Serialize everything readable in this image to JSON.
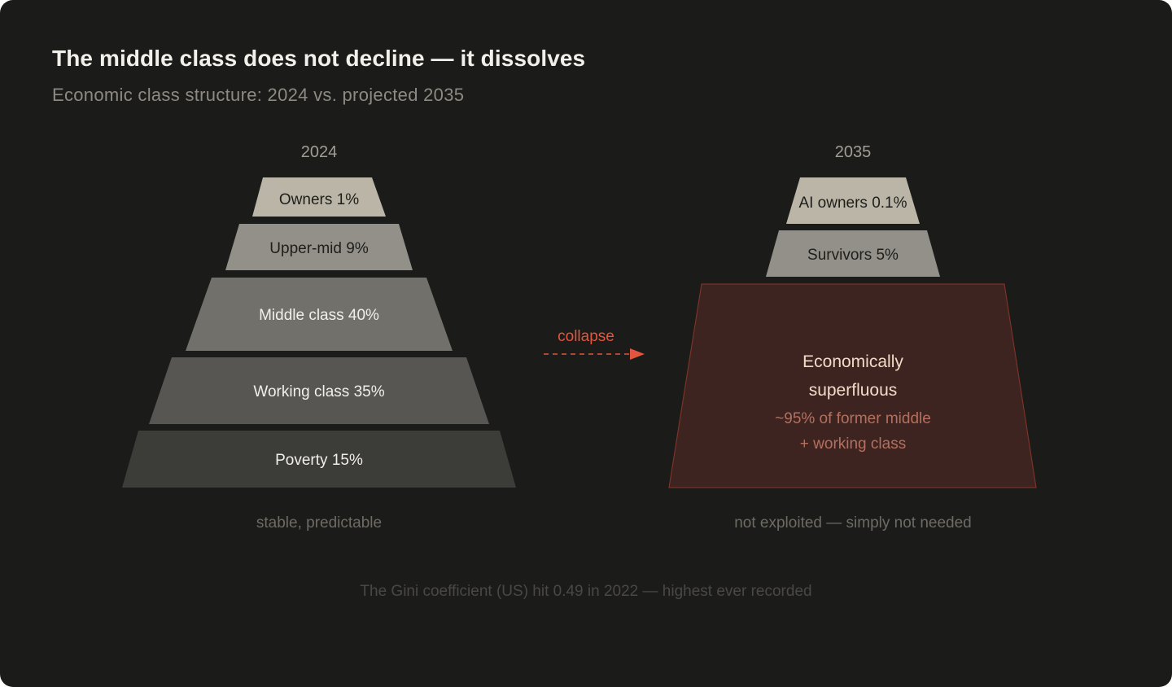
{
  "header": {
    "title": "The middle class does not decline — it dissolves",
    "subtitle": "Economic class structure: 2024 vs. projected 2035"
  },
  "left_pyramid": {
    "year": "2024",
    "tiers": [
      {
        "label": "Owners 1%",
        "color": "#bab5a6"
      },
      {
        "label": "Upper-mid 9%",
        "color": "#93908a"
      },
      {
        "label": "Middle class 40%",
        "color": "#72706a"
      },
      {
        "label": "Working class 35%",
        "color": "#575653"
      },
      {
        "label": "Poverty 15%",
        "color": "#3c3c39"
      }
    ],
    "caption": "stable, predictable"
  },
  "transition": {
    "label": "collapse",
    "color": "#e2553e"
  },
  "right_pyramid": {
    "year": "2035",
    "tiers": [
      {
        "label": "AI owners 0.1%",
        "color": "#bab5a6"
      },
      {
        "label": "Survivors 5%",
        "color": "#93908a"
      }
    ],
    "superfluous": {
      "title_line1": "Economically",
      "title_line2": "superfluous",
      "sub_line1": "~95% of former middle",
      "sub_line2": "+ working class",
      "fill": "#3e2420",
      "stroke": "#7a3328"
    },
    "caption": "not exploited — simply not needed"
  },
  "footnote": "The Gini coefficient (US) hit 0.49 in 2022 — highest ever recorded"
}
